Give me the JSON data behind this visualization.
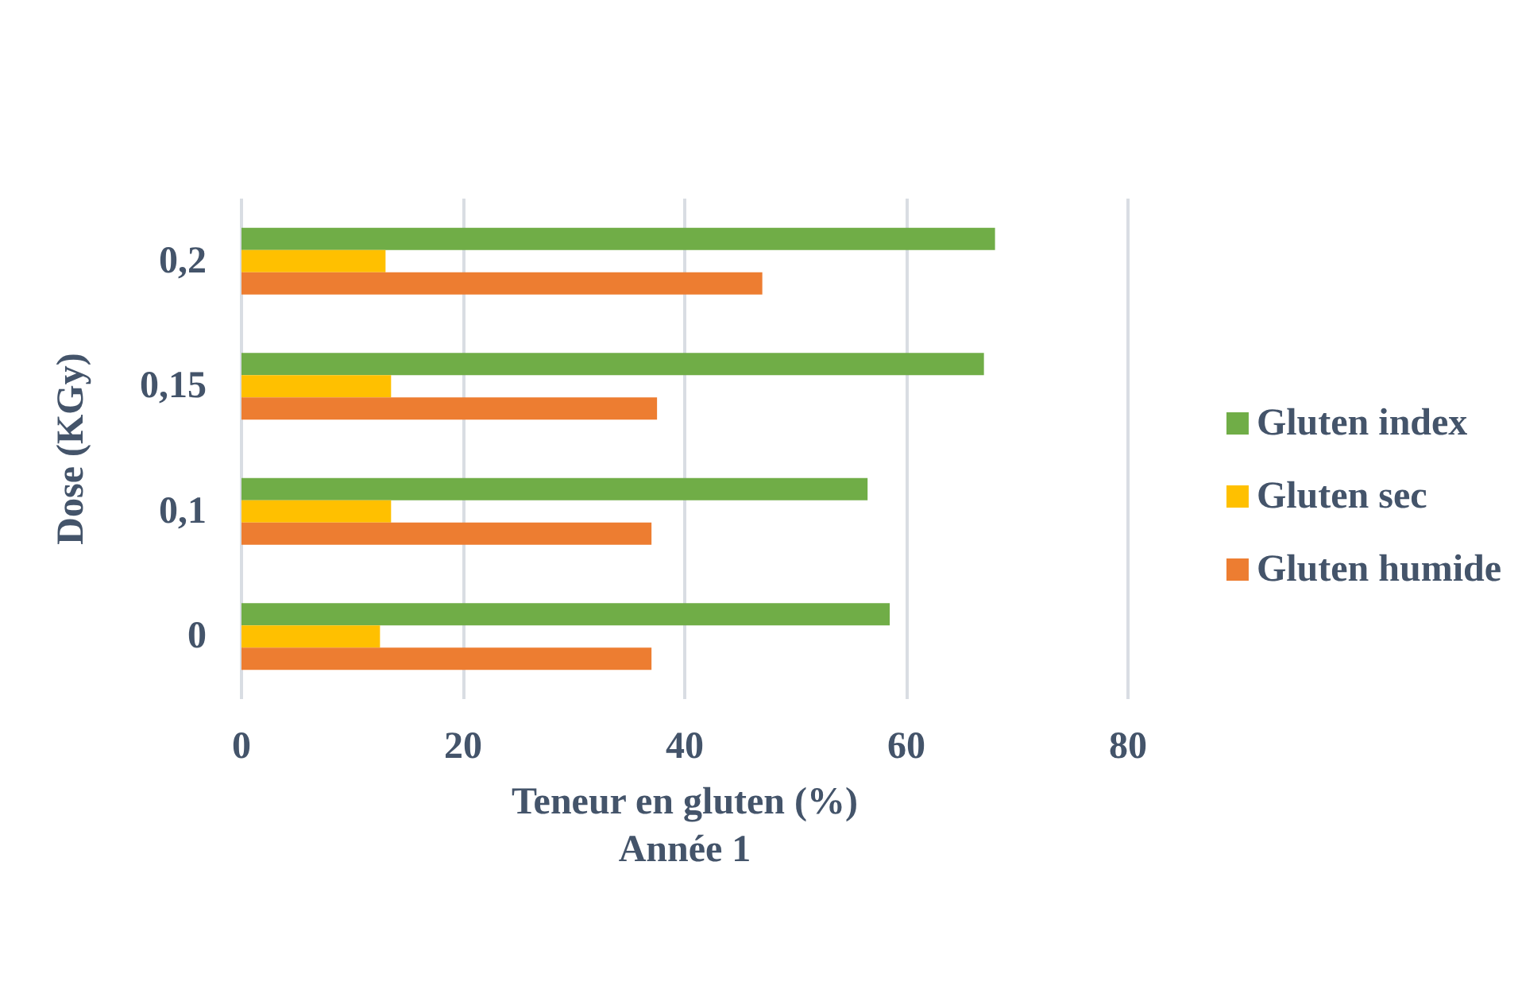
{
  "chart_data": {
    "type": "bar",
    "orientation": "horizontal",
    "xlabel": "Teneur en gluten (%)",
    "subtitle": "Année 1",
    "ylabel": "Dose (KGy)",
    "categories": [
      "0,2",
      "0,15",
      "0,1",
      "0"
    ],
    "series": [
      {
        "name": "Gluten index",
        "color": "#70ad47",
        "values": [
          68,
          67,
          56.5,
          58.5
        ]
      },
      {
        "name": "Gluten sec",
        "color": "#ffc000",
        "values": [
          13,
          13.5,
          13.5,
          12.5
        ]
      },
      {
        "name": "Gluten humide",
        "color": "#ed7d31",
        "values": [
          47,
          37.5,
          37,
          37
        ]
      }
    ],
    "xlim": [
      0,
      80
    ],
    "xticks": [
      0,
      20,
      40,
      60,
      80
    ],
    "grid": "x",
    "legend": "right"
  }
}
